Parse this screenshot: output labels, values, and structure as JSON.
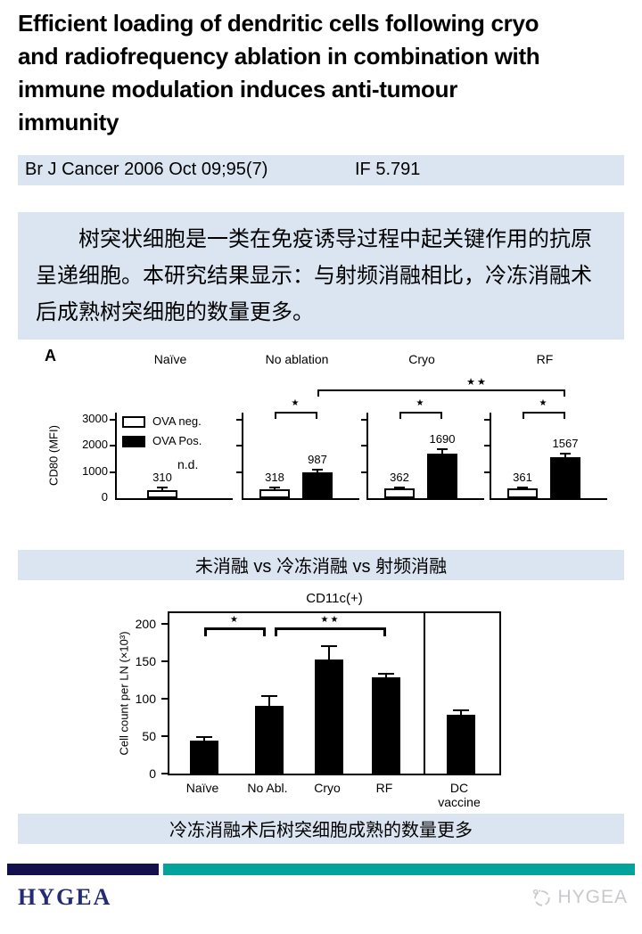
{
  "title": "Efficient loading of dendritic cells following cryo\nand radiofrequency ablation in combination with\nimmune modulation induces anti-tumour\nimmunity",
  "citation": {
    "journal": "Br J Cancer 2006 Oct 09;95(7)",
    "impact_factor": "IF 5.791"
  },
  "abstract_cn": "树突状细胞是一类在免疫诱导过程中起关键作用的抗原呈递细胞。本研究结果显示：与射频消融相比，冷冻消融术后成熟树突细胞的数量更多。",
  "caption1": "未消融 vs 冷冻消融 vs 射频消融",
  "caption2": "冷冻消融术后树突细胞成熟的数量更多",
  "footer": {
    "brand_left": "HYGEA",
    "brand_right": "HYGEA"
  },
  "colors": {
    "light_blue": "#dbe5f1",
    "stripe_navy": "#14104e",
    "stripe_teal": "#01a39a",
    "brand_navy": "#232b74",
    "brand_gray": "#c9c9cd",
    "bar_black": "#000000"
  },
  "chart_data": [
    {
      "type": "bar",
      "panel_label": "A",
      "ylabel": "CD80 (MFI)",
      "yticks": [
        0,
        1000,
        2000,
        3000
      ],
      "ylim": [
        0,
        3300
      ],
      "legend": [
        "OVA neg.",
        "OVA Pos."
      ],
      "panels": [
        {
          "title": "Naïve",
          "values": {
            "ova_neg": 310,
            "ova_pos": null
          },
          "errors": {
            "ova_neg": 120,
            "ova_pos": null
          },
          "note": "n.d."
        },
        {
          "title": "No ablation",
          "values": {
            "ova_neg": 318,
            "ova_pos": 987
          },
          "errors": {
            "ova_neg": 120,
            "ova_pos": 140
          },
          "sig": "*"
        },
        {
          "title": "Cryo",
          "values": {
            "ova_neg": 362,
            "ova_pos": 1690
          },
          "errors": {
            "ova_neg": 80,
            "ova_pos": 210
          },
          "sig": "*"
        },
        {
          "title": "RF",
          "values": {
            "ova_neg": 361,
            "ova_pos": 1567
          },
          "errors": {
            "ova_neg": 90,
            "ova_pos": 170
          },
          "sig": "*"
        }
      ],
      "cross_panel_sig": {
        "label": "**",
        "from_panel": "No ablation",
        "to_panel": "RF",
        "series": "OVA Pos."
      }
    },
    {
      "type": "bar",
      "title": "CD11c(+)",
      "ylabel": "Cell count per LN (×10³)",
      "yticks": [
        0,
        50,
        100,
        150,
        200
      ],
      "ylim": [
        0,
        219
      ],
      "categories": [
        "Naïve",
        "No Abl.",
        "Cryo",
        "RF",
        "DC vaccine"
      ],
      "values": [
        44,
        90,
        152,
        128,
        78
      ],
      "errors": [
        6,
        14,
        19,
        6,
        7
      ],
      "significance": [
        {
          "label": "*",
          "from": "Naïve",
          "to": "No Abl."
        },
        {
          "label": "**",
          "from": "No Abl.",
          "to": "RF"
        }
      ],
      "separator_after": "RF"
    }
  ]
}
